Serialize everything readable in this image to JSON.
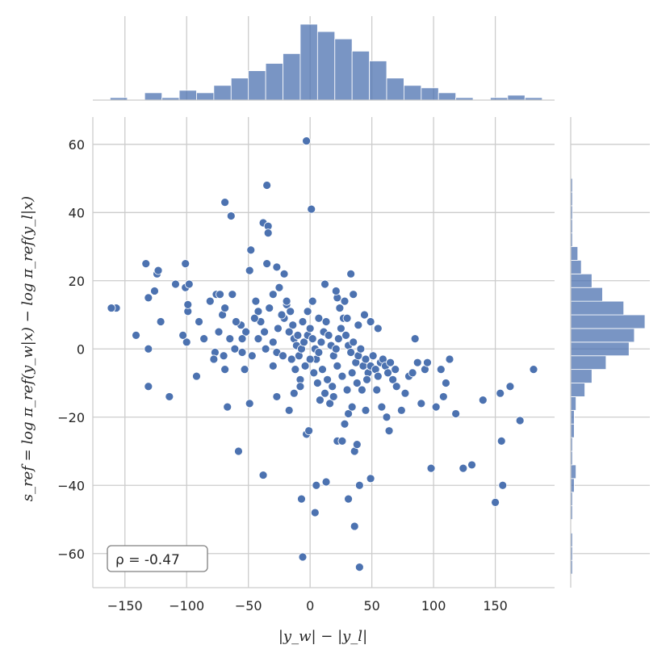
{
  "chart_data": {
    "type": "scatter",
    "xlabel": "|y_w| − |y_l|",
    "ylabel": "s_ref = log π_ref(y_w|x) − log π_ref(y_l|x)",
    "xlim": [
      -176,
      198
    ],
    "ylim": [
      -70,
      68
    ],
    "xticks": [
      -150,
      -100,
      -50,
      0,
      50,
      100,
      150
    ],
    "xtick_labels": [
      "−150",
      "−100",
      "−50",
      "0",
      "50",
      "100",
      "150"
    ],
    "yticks": [
      60,
      40,
      20,
      0,
      -20,
      -40,
      -60
    ],
    "ytick_labels": [
      "60",
      "40",
      "20",
      "0",
      "−20",
      "−40",
      "−60"
    ],
    "grid": true,
    "annotation": "ρ = -0.47",
    "points": [
      [
        -3,
        61
      ],
      [
        -69,
        43
      ],
      [
        -64,
        39
      ],
      [
        1,
        41
      ],
      [
        -35,
        48
      ],
      [
        -38,
        37
      ],
      [
        -34,
        36
      ],
      [
        -34,
        34
      ],
      [
        -48,
        29
      ],
      [
        -133,
        25
      ],
      [
        -101,
        25
      ],
      [
        -124,
        22
      ],
      [
        -123,
        23
      ],
      [
        -114,
        -14
      ],
      [
        -131,
        -11
      ],
      [
        -131,
        0
      ],
      [
        -141,
        4
      ],
      [
        -157,
        12
      ],
      [
        -161,
        12
      ],
      [
        -131,
        15
      ],
      [
        -126,
        17
      ],
      [
        -109,
        19
      ],
      [
        -101,
        18
      ],
      [
        -98,
        19
      ],
      [
        -121,
        8
      ],
      [
        -99,
        11
      ],
      [
        -99,
        13
      ],
      [
        -92,
        -8
      ],
      [
        -76,
        16
      ],
      [
        -73,
        16
      ],
      [
        -63,
        16
      ],
      [
        -81,
        14
      ],
      [
        -86,
        3
      ],
      [
        -90,
        8
      ],
      [
        -100,
        2
      ],
      [
        -103,
        4
      ],
      [
        -77,
        -1
      ],
      [
        -78,
        -3
      ],
      [
        -69,
        -6
      ],
      [
        -67,
        -17
      ],
      [
        -74,
        5
      ],
      [
        -71,
        10
      ],
      [
        -69,
        12
      ],
      [
        -56,
        7
      ],
      [
        -52,
        5
      ],
      [
        -61,
        0
      ],
      [
        -55,
        -1
      ],
      [
        -55,
        3
      ],
      [
        -49,
        23
      ],
      [
        -49,
        -16
      ],
      [
        -53,
        -6
      ],
      [
        -58,
        -30
      ],
      [
        -38,
        -37
      ],
      [
        -44,
        14
      ],
      [
        -42,
        11
      ],
      [
        -40,
        8
      ],
      [
        -37,
        5
      ],
      [
        -36,
        0
      ],
      [
        -30,
        2
      ],
      [
        -27,
        -1
      ],
      [
        -26,
        6
      ],
      [
        -21,
        9
      ],
      [
        -19,
        13
      ],
      [
        -16,
        11
      ],
      [
        -14,
        7
      ],
      [
        -13,
        3
      ],
      [
        -11,
        1
      ],
      [
        -9,
        -2
      ],
      [
        -7,
        0
      ],
      [
        -5,
        2
      ],
      [
        -2,
        4
      ],
      [
        0,
        6
      ],
      [
        2,
        3
      ],
      [
        4,
        0
      ],
      [
        5,
        -3
      ],
      [
        7,
        -1
      ],
      [
        9,
        2
      ],
      [
        11,
        5
      ],
      [
        13,
        8
      ],
      [
        15,
        4
      ],
      [
        17,
        1
      ],
      [
        19,
        -2
      ],
      [
        21,
        0
      ],
      [
        23,
        3
      ],
      [
        25,
        6
      ],
      [
        27,
        9
      ],
      [
        29,
        4
      ],
      [
        31,
        1
      ],
      [
        33,
        -1
      ],
      [
        35,
        2
      ],
      [
        37,
        -4
      ],
      [
        39,
        -2
      ],
      [
        41,
        0
      ],
      [
        43,
        -5
      ],
      [
        45,
        -3
      ],
      [
        47,
        -7
      ],
      [
        49,
        -5
      ],
      [
        51,
        -2
      ],
      [
        53,
        -6
      ],
      [
        55,
        -8
      ],
      [
        57,
        -4
      ],
      [
        59,
        -3
      ],
      [
        61,
        -5
      ],
      [
        63,
        -7
      ],
      [
        65,
        -4
      ],
      [
        67,
        -9
      ],
      [
        69,
        -6
      ],
      [
        -35,
        25
      ],
      [
        -27,
        24
      ],
      [
        -21,
        22
      ],
      [
        -25,
        18
      ],
      [
        -19,
        14
      ],
      [
        -30,
        16
      ],
      [
        -33,
        12
      ],
      [
        -23,
        10
      ],
      [
        -17,
        5
      ],
      [
        -15,
        -3
      ],
      [
        -12,
        -6
      ],
      [
        -8,
        -9
      ],
      [
        -4,
        -5
      ],
      [
        0,
        -3
      ],
      [
        3,
        -7
      ],
      [
        6,
        -10
      ],
      [
        10,
        -6
      ],
      [
        14,
        -9
      ],
      [
        18,
        -11
      ],
      [
        22,
        -5
      ],
      [
        26,
        -8
      ],
      [
        30,
        -12
      ],
      [
        34,
        -7
      ],
      [
        38,
        -10
      ],
      [
        42,
        -12
      ],
      [
        46,
        -9
      ],
      [
        -27,
        -14
      ],
      [
        -17,
        -18
      ],
      [
        -13,
        -13
      ],
      [
        -8,
        -11
      ],
      [
        -3,
        -25
      ],
      [
        -1,
        -24
      ],
      [
        5,
        -40
      ],
      [
        8,
        -15
      ],
      [
        12,
        -13
      ],
      [
        16,
        -16
      ],
      [
        19,
        -14
      ],
      [
        22,
        -27
      ],
      [
        26,
        -27
      ],
      [
        28,
        -22
      ],
      [
        31,
        -19
      ],
      [
        34,
        -17
      ],
      [
        36,
        -30
      ],
      [
        38,
        -28
      ],
      [
        40,
        -40
      ],
      [
        45,
        -18
      ],
      [
        49,
        -38
      ],
      [
        54,
        -12
      ],
      [
        58,
        -17
      ],
      [
        62,
        -20
      ],
      [
        64,
        -24
      ],
      [
        70,
        -11
      ],
      [
        74,
        -18
      ],
      [
        77,
        -13
      ],
      [
        80,
        -8
      ],
      [
        83,
        -7
      ],
      [
        85,
        3
      ],
      [
        87,
        -4
      ],
      [
        90,
        -16
      ],
      [
        93,
        -6
      ],
      [
        95,
        -4
      ],
      [
        98,
        -35
      ],
      [
        102,
        -17
      ],
      [
        106,
        -6
      ],
      [
        108,
        -14
      ],
      [
        110,
        -10
      ],
      [
        113,
        -3
      ],
      [
        118,
        -19
      ],
      [
        124,
        -35
      ],
      [
        131,
        -34
      ],
      [
        140,
        -15
      ],
      [
        150,
        -45
      ],
      [
        154,
        -13
      ],
      [
        155,
        -27
      ],
      [
        156,
        -40
      ],
      [
        162,
        -11
      ],
      [
        170,
        -21
      ],
      [
        181,
        -6
      ],
      [
        -7,
        -44
      ],
      [
        4,
        -48
      ],
      [
        -6,
        -61
      ],
      [
        36,
        -52
      ],
      [
        40,
        -64
      ],
      [
        31,
        -44
      ],
      [
        13,
        -39
      ],
      [
        22,
        15
      ],
      [
        21,
        17
      ],
      [
        12,
        19
      ],
      [
        33,
        22
      ],
      [
        35,
        16
      ],
      [
        49,
        8
      ],
      [
        55,
        6
      ],
      [
        44,
        10
      ],
      [
        39,
        7
      ],
      [
        30,
        9
      ],
      [
        24,
        12
      ],
      [
        28,
        14
      ],
      [
        -6,
        8
      ],
      [
        -2,
        11
      ],
      [
        2,
        14
      ],
      [
        7,
        9
      ],
      [
        -10,
        4
      ],
      [
        -22,
        -2
      ],
      [
        -30,
        -5
      ],
      [
        -42,
        3
      ],
      [
        -45,
        9
      ],
      [
        -47,
        -2
      ],
      [
        -60,
        8
      ],
      [
        -65,
        3
      ],
      [
        -70,
        -2
      ]
    ],
    "x_hist": {
      "bin_edges": [
        -176,
        -162,
        -148,
        -134,
        -120,
        -106,
        -92,
        -78,
        -64,
        -50,
        -36,
        -22,
        -8,
        6,
        20,
        34,
        48,
        62,
        76,
        90,
        104,
        118,
        132,
        146,
        160,
        174,
        188
      ],
      "counts": [
        0,
        1,
        0,
        3,
        1,
        4,
        3,
        6,
        9,
        12,
        15,
        19,
        31,
        28,
        25,
        20,
        16,
        9,
        6,
        5,
        3,
        1,
        0,
        1,
        2,
        1
      ]
    },
    "y_hist": {
      "bin_edges": [
        -70,
        -66,
        -62,
        -58,
        -54,
        -50,
        -46,
        -42,
        -38,
        -34,
        -30,
        -26,
        -22,
        -18,
        -14,
        -10,
        -6,
        -2,
        2,
        6,
        10,
        14,
        18,
        22,
        26,
        30,
        34,
        38,
        42,
        46,
        50,
        54,
        58,
        62,
        66
      ],
      "counts": [
        0,
        1,
        1,
        1,
        0,
        1,
        1,
        2,
        3,
        1,
        1,
        2,
        2,
        3,
        8,
        12,
        20,
        33,
        36,
        42,
        30,
        18,
        12,
        6,
        4,
        1,
        1,
        1,
        1,
        1,
        0,
        0,
        0,
        0
      ]
    }
  }
}
